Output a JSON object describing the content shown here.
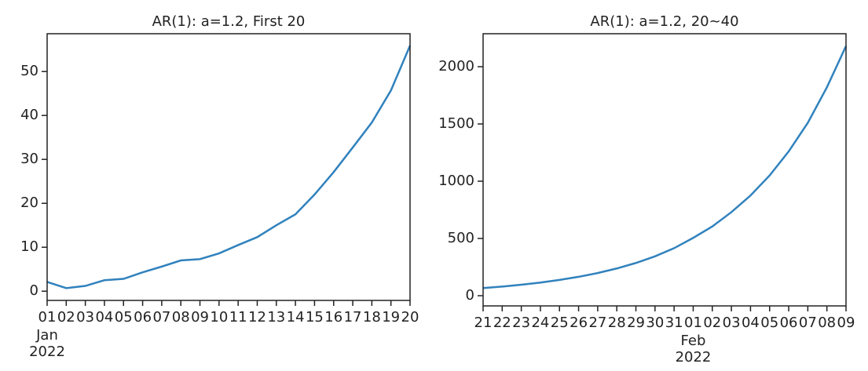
{
  "chart_data": [
    {
      "type": "line",
      "title": "AR(1): a=1.2, First 20",
      "x": [
        "2022-01-01",
        "2022-01-02",
        "2022-01-03",
        "2022-01-04",
        "2022-01-05",
        "2022-01-06",
        "2022-01-07",
        "2022-01-08",
        "2022-01-09",
        "2022-01-10",
        "2022-01-11",
        "2022-01-12",
        "2022-01-13",
        "2022-01-14",
        "2022-01-15",
        "2022-01-16",
        "2022-01-17",
        "2022-01-18",
        "2022-01-19",
        "2022-01-20"
      ],
      "values": [
        2.1,
        0.7,
        1.2,
        2.5,
        2.8,
        4.3,
        5.6,
        7.0,
        7.3,
        8.6,
        10.5,
        12.3,
        15.0,
        17.5,
        22.0,
        27.1,
        32.7,
        38.4,
        45.7,
        55.9
      ],
      "color": "#3182bd",
      "xlim": [
        "2022-01-01",
        "2022-01-20"
      ],
      "xticks": [
        {
          "value": "2022-01-01",
          "label": "01"
        },
        {
          "value": "2022-01-02",
          "label": "02"
        },
        {
          "value": "2022-01-03",
          "label": "03"
        },
        {
          "value": "2022-01-04",
          "label": "04"
        },
        {
          "value": "2022-01-05",
          "label": "05"
        },
        {
          "value": "2022-01-06",
          "label": "06"
        },
        {
          "value": "2022-01-07",
          "label": "07"
        },
        {
          "value": "2022-01-08",
          "label": "08"
        },
        {
          "value": "2022-01-09",
          "label": "09"
        },
        {
          "value": "2022-01-10",
          "label": "10"
        },
        {
          "value": "2022-01-11",
          "label": "11"
        },
        {
          "value": "2022-01-12",
          "label": "12"
        },
        {
          "value": "2022-01-13",
          "label": "13"
        },
        {
          "value": "2022-01-14",
          "label": "14"
        },
        {
          "value": "2022-01-15",
          "label": "15"
        },
        {
          "value": "2022-01-16",
          "label": "16"
        },
        {
          "value": "2022-01-17",
          "label": "17"
        },
        {
          "value": "2022-01-18",
          "label": "18"
        },
        {
          "value": "2022-01-19",
          "label": "19"
        },
        {
          "value": "2022-01-20",
          "label": "20"
        }
      ],
      "xtick_sublabels": [
        {
          "value": "2022-01-01",
          "label": [
            "Jan",
            "2022"
          ]
        }
      ],
      "ylim": [
        -2.1,
        58.6
      ],
      "yticks": [
        0,
        10,
        20,
        30,
        40,
        50
      ]
    },
    {
      "type": "line",
      "title": "AR(1): a=1.2, 20~40",
      "x": [
        "2022-01-21",
        "2022-01-22",
        "2022-01-23",
        "2022-01-24",
        "2022-01-25",
        "2022-01-26",
        "2022-01-27",
        "2022-01-28",
        "2022-01-29",
        "2022-01-30",
        "2022-01-31",
        "2022-02-01",
        "2022-02-02",
        "2022-02-03",
        "2022-02-04",
        "2022-02-05",
        "2022-02-06",
        "2022-02-07",
        "2022-02-08",
        "2022-02-09"
      ],
      "values": [
        67,
        80,
        96,
        115,
        138,
        165,
        198,
        238,
        286,
        344,
        415,
        505,
        605,
        730,
        875,
        1050,
        1260,
        1510,
        1820,
        2180
      ],
      "color": "#3182bd",
      "xlim": [
        "2022-01-21",
        "2022-02-09"
      ],
      "xticks": [
        {
          "value": "2022-01-21",
          "label": "21"
        },
        {
          "value": "2022-01-22",
          "label": "22"
        },
        {
          "value": "2022-01-23",
          "label": "23"
        },
        {
          "value": "2022-01-24",
          "label": "24"
        },
        {
          "value": "2022-01-25",
          "label": "25"
        },
        {
          "value": "2022-01-26",
          "label": "26"
        },
        {
          "value": "2022-01-27",
          "label": "27"
        },
        {
          "value": "2022-01-28",
          "label": "28"
        },
        {
          "value": "2022-01-29",
          "label": "29"
        },
        {
          "value": "2022-01-30",
          "label": "30"
        },
        {
          "value": "2022-01-31",
          "label": "31"
        },
        {
          "value": "2022-02-01",
          "label": "01"
        },
        {
          "value": "2022-02-02",
          "label": "02"
        },
        {
          "value": "2022-02-03",
          "label": "03"
        },
        {
          "value": "2022-02-04",
          "label": "04"
        },
        {
          "value": "2022-02-05",
          "label": "05"
        },
        {
          "value": "2022-02-06",
          "label": "06"
        },
        {
          "value": "2022-02-07",
          "label": "07"
        },
        {
          "value": "2022-02-08",
          "label": "08"
        },
        {
          "value": "2022-02-09",
          "label": "09"
        }
      ],
      "xtick_sublabels": [
        {
          "value": "2022-02-01",
          "label": [
            "Feb",
            "2022"
          ]
        }
      ],
      "ylim": [
        -89,
        2288
      ],
      "yticks": [
        0,
        500,
        1000,
        1500,
        2000
      ]
    }
  ]
}
